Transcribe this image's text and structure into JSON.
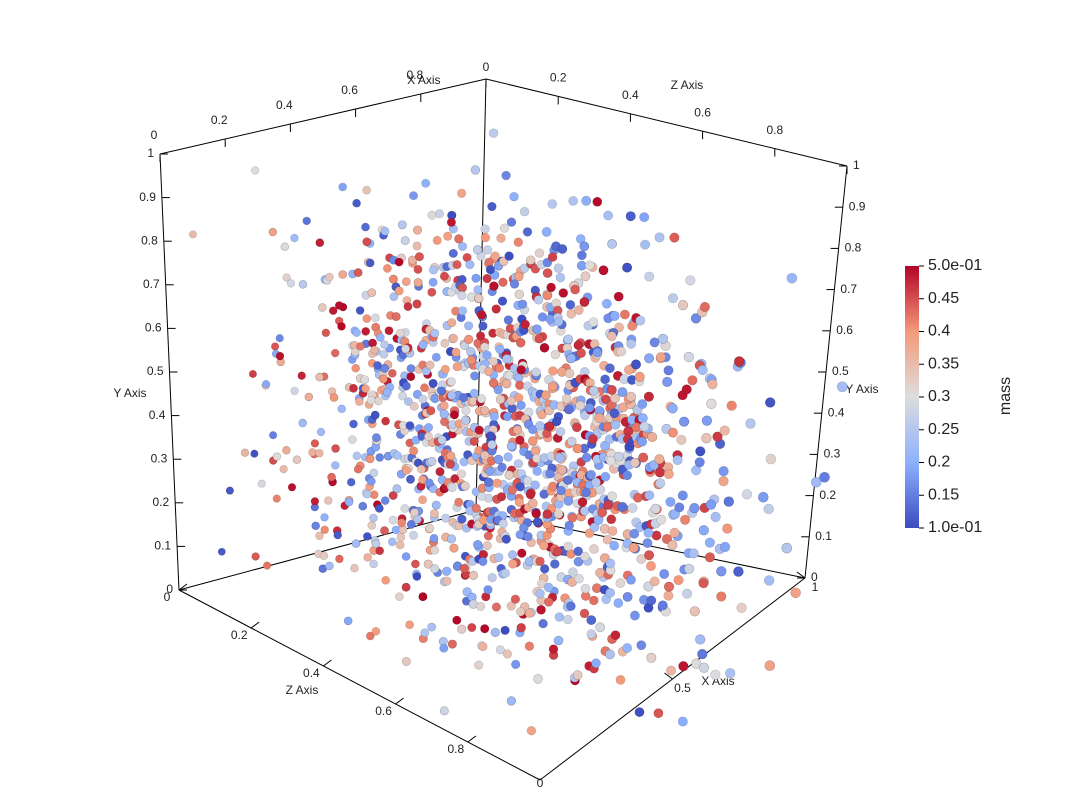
{
  "chart_data": {
    "type": "scatter",
    "projection": "3d",
    "title": "",
    "marker": "sphere",
    "n_points_approx": 2000,
    "axes": {
      "x": {
        "label": "X Axis",
        "range": [
          0,
          1
        ],
        "ticks_back": [
          "0",
          "0.2",
          "0.4",
          "0.6",
          "0.8"
        ],
        "ticks_front": [
          "0.5",
          "1"
        ]
      },
      "y": {
        "label": "Y Axis",
        "range": [
          0,
          1
        ],
        "ticks": [
          "0",
          "0.1",
          "0.2",
          "0.3",
          "0.4",
          "0.5",
          "0.6",
          "0.7",
          "0.8",
          "0.9",
          "1"
        ]
      },
      "z": {
        "label": "Z Axis",
        "range": [
          0,
          1
        ],
        "ticks": [
          "0",
          "0.2",
          "0.4",
          "0.6",
          "0.8",
          "1"
        ]
      }
    },
    "color_by": "mass",
    "colorbar": {
      "title": "mass",
      "range": [
        0.1,
        0.5
      ],
      "tick_labels": [
        "5.0e-01",
        "0.45",
        "0.4",
        "0.35",
        "0.3",
        "0.25",
        "0.2",
        "0.15",
        "1.0e-01"
      ],
      "colormap": [
        "#3b4cc0",
        "#8db0fe",
        "#dddddd",
        "#f49a7b",
        "#b40426"
      ]
    }
  }
}
